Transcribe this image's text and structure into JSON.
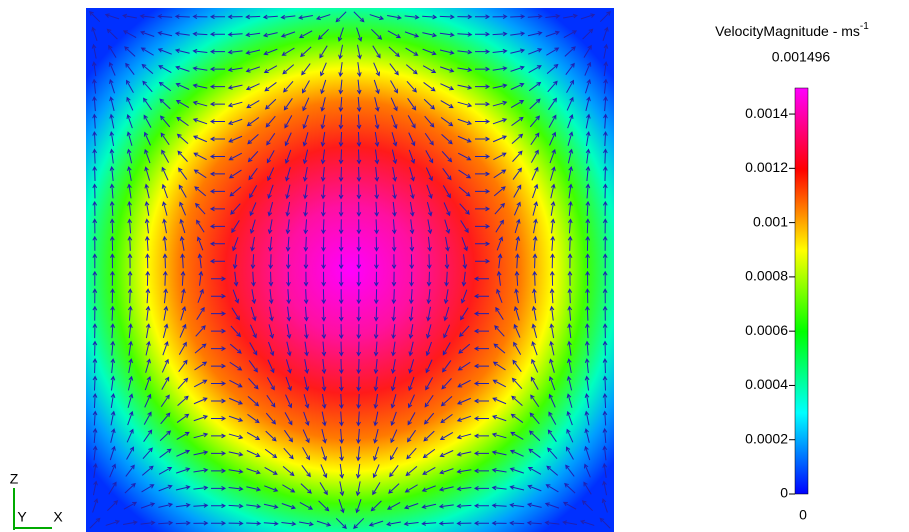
{
  "chart_data": {
    "type": "heatmap",
    "title": "VelocityMagnitude - ms",
    "title_superscript": "-1",
    "max_label": "0.001496",
    "min_label": "0",
    "clim": [
      0,
      0.001496
    ],
    "ticks": [
      0,
      0.0002,
      0.0004,
      0.0006,
      0.0008,
      0.001,
      0.0012,
      0.0014
    ],
    "colors": [
      "#0000ff",
      "#00ffff",
      "#00ff00",
      "#ffff00",
      "#ff0000",
      "#ff00ff"
    ],
    "axes": {
      "z": "Z",
      "y": "Y",
      "x": "X"
    }
  }
}
